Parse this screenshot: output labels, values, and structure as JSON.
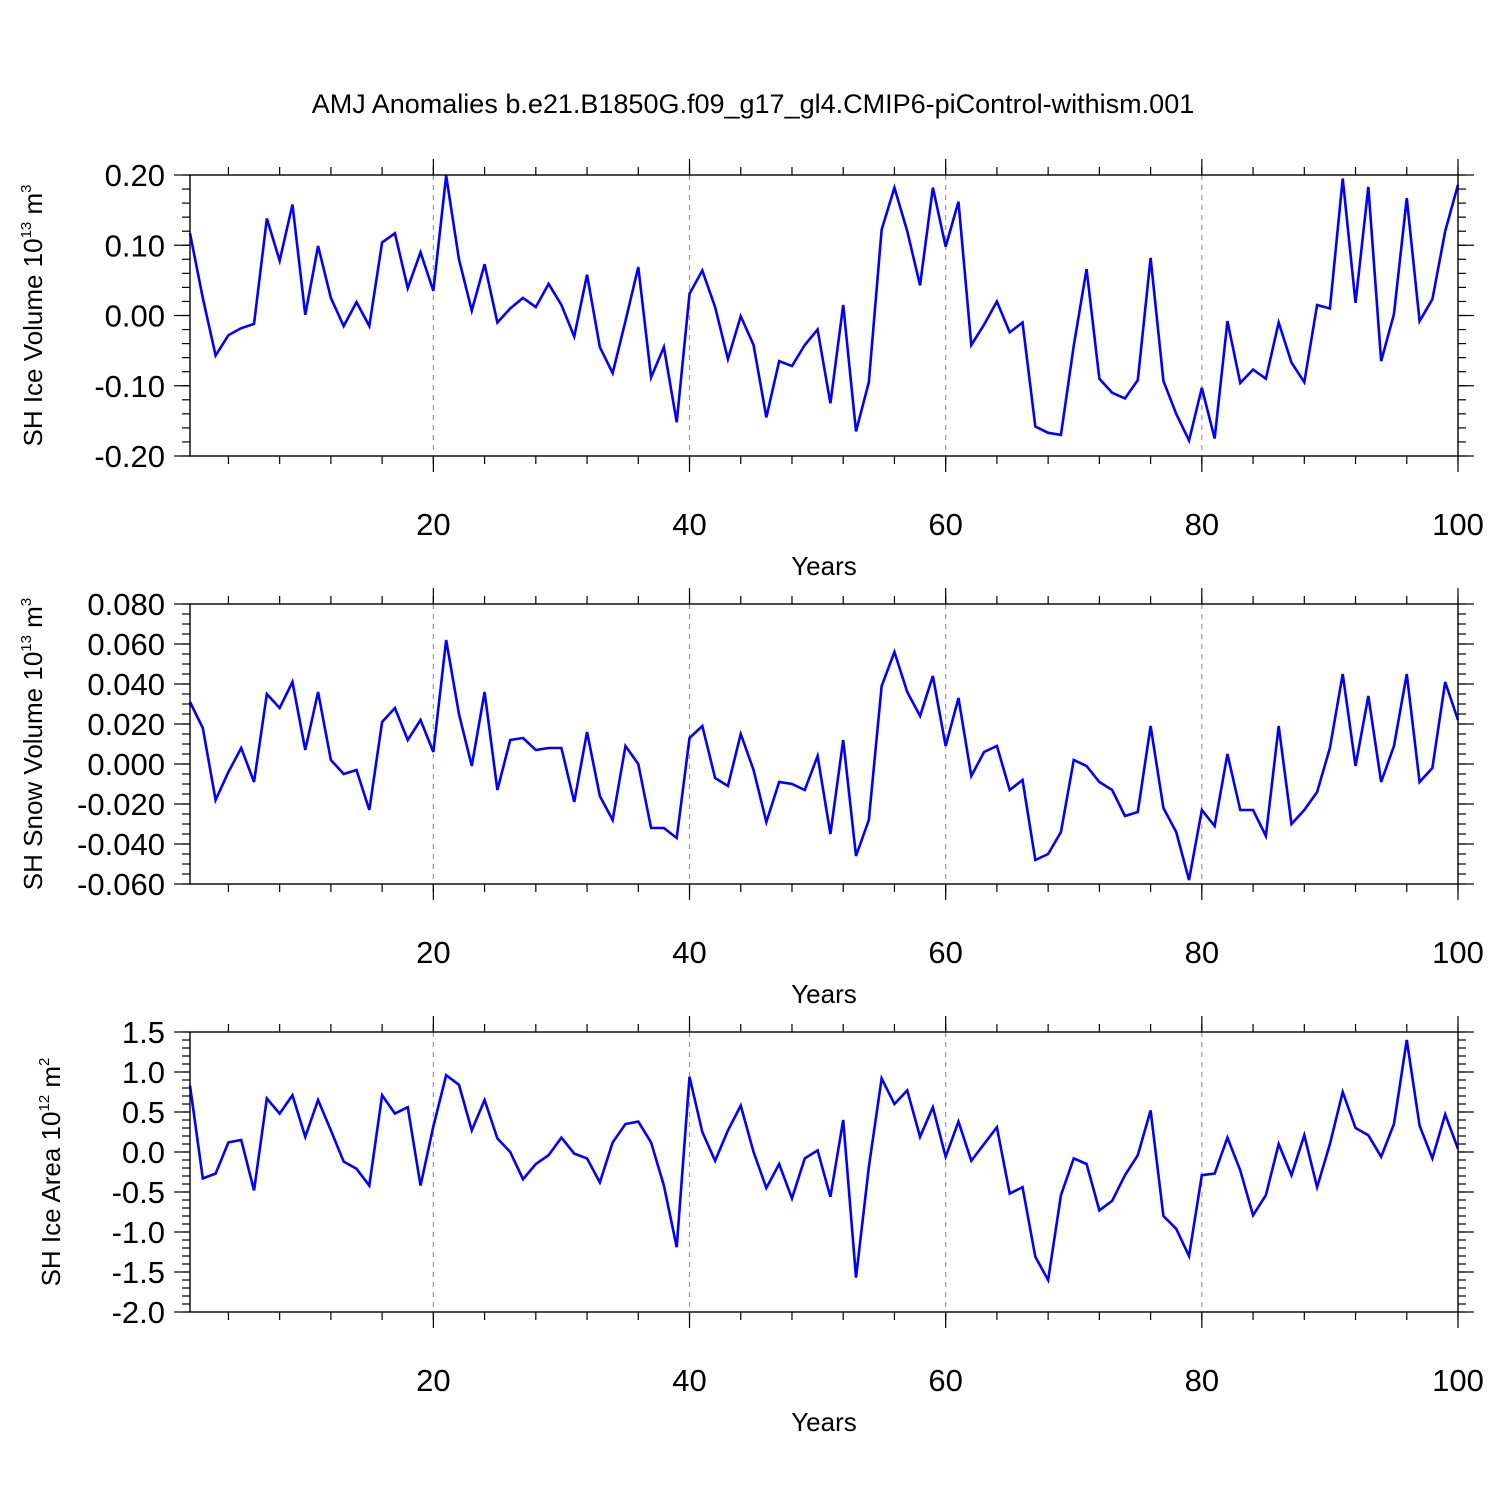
{
  "title": "AMJ Anomalies b.e21.B1850G.f09_g17_gl4.CMIP6-piControl-withism.001",
  "chart_data": [
    {
      "type": "line",
      "name": "sh-ice-volume",
      "ylabel_main": "SH Ice Volume 10",
      "ylabel_exp": "13",
      "ylabel_unit": " m",
      "ylabel_unit_exp": "3",
      "xlabel": "Years",
      "xlim": [
        1,
        100
      ],
      "ylim": [
        -0.2,
        0.2
      ],
      "yticks": [
        -0.2,
        -0.1,
        0.0,
        0.1,
        0.2
      ],
      "ytick_labels": [
        "-0.20",
        "-0.10",
        "0.00",
        "0.10",
        "0.20"
      ],
      "yminor_step": 0.02,
      "xticks": [
        20,
        40,
        60,
        80,
        100
      ],
      "xtick_labels": [
        "20",
        "40",
        "60",
        "80",
        "100"
      ],
      "xminor_step": 4,
      "grid_x": [
        20,
        40,
        60,
        80
      ],
      "x_start": 1,
      "color": "#0000ff",
      "values": [
        0.117,
        0.025,
        -0.057,
        -0.028,
        -0.018,
        -0.012,
        0.138,
        0.078,
        0.158,
        0.001,
        0.099,
        0.025,
        -0.015,
        0.019,
        -0.015,
        0.104,
        0.117,
        0.039,
        0.09,
        0.035,
        0.199,
        0.08,
        0.007,
        0.073,
        -0.01,
        0.01,
        0.025,
        0.012,
        0.045,
        0.015,
        -0.03,
        0.058,
        -0.045,
        -0.082,
        -0.008,
        0.069,
        -0.088,
        -0.045,
        -0.152,
        0.031,
        0.064,
        0.012,
        -0.062,
        -0.001,
        -0.042,
        -0.145,
        -0.065,
        -0.072,
        -0.042,
        -0.02,
        -0.125,
        0.015,
        -0.165,
        -0.095,
        0.122,
        0.182,
        0.12,
        0.043,
        0.182,
        0.098,
        0.162,
        -0.042,
        -0.013,
        0.02,
        -0.024,
        -0.01,
        -0.158,
        -0.167,
        -0.17,
        -0.043,
        0.066,
        -0.09,
        -0.11,
        -0.118,
        -0.092,
        0.082,
        -0.093,
        -0.14,
        -0.178,
        -0.103,
        -0.175,
        -0.008,
        -0.096,
        -0.077,
        -0.09,
        -0.01,
        -0.067,
        -0.095,
        0.015,
        0.01,
        0.195,
        0.018,
        0.183,
        -0.065,
        0.002,
        0.167,
        -0.008,
        0.023,
        0.12,
        0.186
      ]
    },
    {
      "type": "line",
      "name": "sh-snow-volume",
      "ylabel_main": "SH Snow Volume 10",
      "ylabel_exp": "13",
      "ylabel_unit": " m",
      "ylabel_unit_exp": "3",
      "xlabel": "Years",
      "xlim": [
        1,
        100
      ],
      "ylim": [
        -0.06,
        0.08
      ],
      "yticks": [
        -0.06,
        -0.04,
        -0.02,
        0.0,
        0.02,
        0.04,
        0.06,
        0.08
      ],
      "ytick_labels": [
        "-0.060",
        "-0.040",
        "-0.020",
        "0.000",
        "0.020",
        "0.040",
        "0.060",
        "0.080"
      ],
      "yminor_step": 0.005,
      "xticks": [
        20,
        40,
        60,
        80,
        100
      ],
      "xtick_labels": [
        "20",
        "40",
        "60",
        "80",
        "100"
      ],
      "xminor_step": 4,
      "grid_x": [
        20,
        40,
        60,
        80
      ],
      "x_start": 1,
      "color": "#0000ff",
      "values": [
        0.031,
        0.018,
        -0.018,
        -0.004,
        0.008,
        -0.009,
        0.035,
        0.028,
        0.041,
        0.007,
        0.036,
        0.002,
        -0.005,
        -0.003,
        -0.023,
        0.021,
        0.028,
        0.012,
        0.022,
        0.006,
        0.062,
        0.025,
        -0.001,
        0.036,
        -0.013,
        0.012,
        0.013,
        0.007,
        0.008,
        0.008,
        -0.019,
        0.016,
        -0.016,
        -0.028,
        0.009,
        0.0,
        -0.032,
        -0.032,
        -0.037,
        0.013,
        0.019,
        -0.007,
        -0.011,
        0.015,
        -0.003,
        -0.029,
        -0.009,
        -0.01,
        -0.013,
        0.004,
        -0.035,
        0.012,
        -0.046,
        -0.028,
        0.039,
        0.056,
        0.036,
        0.024,
        0.044,
        0.009,
        0.033,
        -0.006,
        0.006,
        0.009,
        -0.013,
        -0.008,
        -0.048,
        -0.045,
        -0.034,
        0.002,
        -0.001,
        -0.009,
        -0.013,
        -0.026,
        -0.024,
        0.019,
        -0.022,
        -0.034,
        -0.058,
        -0.023,
        -0.031,
        0.005,
        -0.023,
        -0.023,
        -0.036,
        0.019,
        -0.03,
        -0.023,
        -0.014,
        0.008,
        0.045,
        -0.001,
        0.034,
        -0.009,
        0.009,
        0.045,
        -0.009,
        -0.002,
        0.041,
        0.022
      ]
    },
    {
      "type": "line",
      "name": "sh-ice-area",
      "ylabel_main": "SH Ice Area 10",
      "ylabel_exp": "12",
      "ylabel_unit": " m",
      "ylabel_unit_exp": "2",
      "xlabel": "Years",
      "xlim": [
        1,
        100
      ],
      "ylim": [
        -2.0,
        1.5
      ],
      "yticks": [
        -2.0,
        -1.5,
        -1.0,
        -0.5,
        0.0,
        0.5,
        1.0,
        1.5
      ],
      "ytick_labels": [
        "-2.0",
        "-1.5",
        "-1.0",
        "-0.5",
        "0.0",
        "0.5",
        "1.0",
        "1.5"
      ],
      "yminor_step": 0.1,
      "xticks": [
        20,
        40,
        60,
        80,
        100
      ],
      "xtick_labels": [
        "20",
        "40",
        "60",
        "80",
        "100"
      ],
      "xminor_step": 4,
      "grid_x": [
        20,
        40,
        60,
        80
      ],
      "x_start": 1,
      "color": "#0000ff",
      "values": [
        0.83,
        -0.33,
        -0.27,
        0.12,
        0.15,
        -0.48,
        0.67,
        0.48,
        0.71,
        0.19,
        0.65,
        0.27,
        -0.12,
        -0.21,
        -0.42,
        0.71,
        0.48,
        0.56,
        -0.42,
        0.32,
        0.96,
        0.84,
        0.27,
        0.65,
        0.17,
        0.0,
        -0.34,
        -0.15,
        -0.04,
        0.18,
        -0.02,
        -0.08,
        -0.38,
        0.12,
        0.35,
        0.38,
        0.12,
        -0.42,
        -1.19,
        0.94,
        0.25,
        -0.11,
        0.27,
        0.58,
        0.0,
        -0.45,
        -0.15,
        -0.58,
        -0.08,
        0.02,
        -0.56,
        0.4,
        -1.57,
        -0.19,
        0.92,
        0.6,
        0.77,
        0.19,
        0.56,
        -0.06,
        0.38,
        -0.11,
        0.1,
        0.31,
        -0.52,
        -0.44,
        -1.31,
        -1.6,
        -0.54,
        -0.08,
        -0.15,
        -0.73,
        -0.61,
        -0.29,
        -0.04,
        0.52,
        -0.8,
        -0.96,
        -1.3,
        -0.29,
        -0.27,
        0.18,
        -0.23,
        -0.79,
        -0.54,
        0.1,
        -0.29,
        0.21,
        -0.44,
        0.1,
        0.75,
        0.3,
        0.21,
        -0.06,
        0.35,
        1.4,
        0.33,
        -0.08,
        0.47,
        0.04
      ]
    }
  ]
}
